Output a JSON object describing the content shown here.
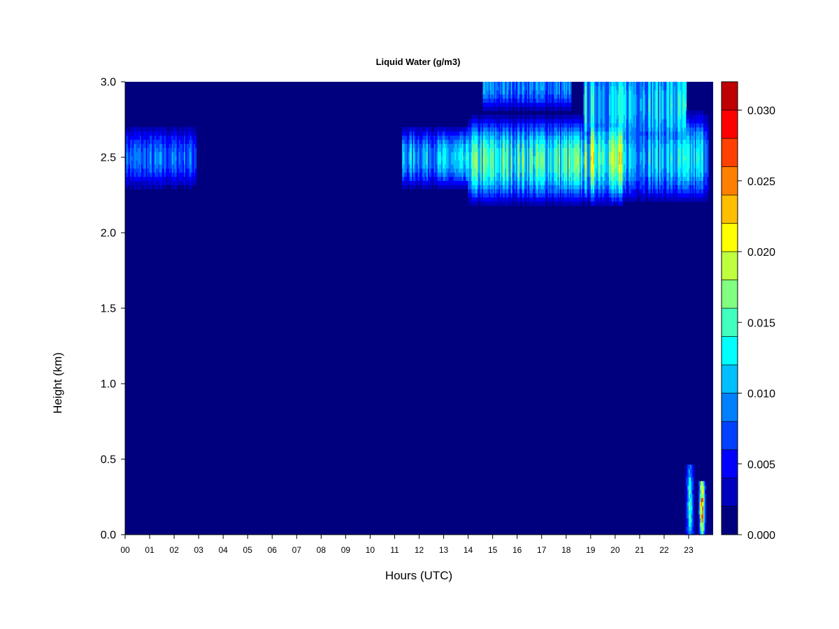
{
  "chart_data": {
    "type": "heatmap",
    "title": "Liquid Water (g/m3)",
    "xlabel": "Hours (UTC)",
    "ylabel": "Height (km)",
    "xlim": [
      0,
      24
    ],
    "ylim": [
      0,
      3.0
    ],
    "x_ticks": [
      "00",
      "01",
      "02",
      "03",
      "04",
      "05",
      "06",
      "07",
      "08",
      "09",
      "10",
      "11",
      "12",
      "13",
      "14",
      "15",
      "16",
      "17",
      "18",
      "19",
      "20",
      "21",
      "22",
      "23"
    ],
    "y_ticks": [
      "0.0",
      "0.5",
      "1.0",
      "1.5",
      "2.0",
      "2.5",
      "3.0"
    ],
    "colorbar": {
      "min": 0.0,
      "max": 0.032,
      "tick_values": [
        0.0,
        0.005,
        0.01,
        0.015,
        0.02,
        0.025,
        0.03
      ],
      "tick_labels": [
        "0.000",
        "0.005",
        "0.010",
        "0.015",
        "0.020",
        "0.025",
        "0.030"
      ],
      "levels": 16,
      "colors": [
        "#00007f",
        "#0000bf",
        "#0000ff",
        "#0040ff",
        "#0080ff",
        "#00bfff",
        "#00ffff",
        "#40ffbf",
        "#80ff80",
        "#bfff40",
        "#ffff00",
        "#ffbf00",
        "#ff8000",
        "#ff4000",
        "#ff0000",
        "#bf0000",
        "#7f0000"
      ]
    },
    "background_value": 0.0,
    "cloud_layers": [
      {
        "x_start": 0.0,
        "x_end": 2.9,
        "z_center": 2.5,
        "thickness": 0.23,
        "peak": 0.009
      },
      {
        "x_start": 11.3,
        "x_end": 14.0,
        "z_center": 2.5,
        "thickness": 0.23,
        "peak": 0.012
      },
      {
        "x_start": 14.0,
        "x_end": 19.0,
        "z_center": 2.48,
        "thickness": 0.32,
        "peak": 0.016
      },
      {
        "x_start": 19.0,
        "x_end": 20.3,
        "z_center": 2.5,
        "thickness": 0.35,
        "peak": 0.019
      },
      {
        "x_start": 20.3,
        "x_end": 23.8,
        "z_center": 2.5,
        "thickness": 0.33,
        "peak": 0.013
      },
      {
        "x_start": 14.6,
        "x_end": 18.2,
        "z_center": 2.97,
        "thickness": 0.18,
        "peak": 0.01
      },
      {
        "x_start": 18.7,
        "x_end": 22.9,
        "z_center": 2.85,
        "thickness": 0.45,
        "peak": 0.013
      }
    ],
    "precip_cells": [
      {
        "x_center": 23.05,
        "x_halfwidth": 0.22,
        "z_top": 0.45,
        "peak": 0.016
      },
      {
        "x_center": 23.55,
        "x_halfwidth": 0.17,
        "z_top": 0.35,
        "peak": 0.029
      }
    ]
  }
}
